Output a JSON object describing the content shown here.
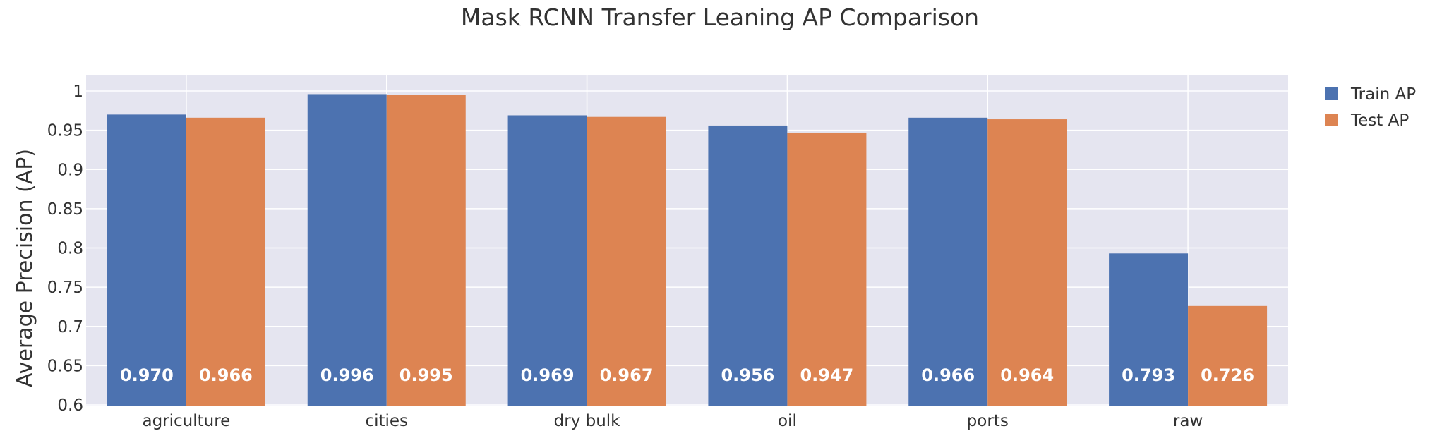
{
  "chart_data": {
    "type": "bar",
    "title": "Mask RCNN Transfer Leaning AP Comparison",
    "xlabel": "",
    "ylabel": "Average Precision (AP)",
    "categories": [
      "agriculture",
      "cities",
      "dry bulk",
      "oil",
      "ports",
      "raw"
    ],
    "series": [
      {
        "name": "Train AP",
        "color": "#4c72b0",
        "values": [
          0.97,
          0.996,
          0.969,
          0.956,
          0.966,
          0.793
        ],
        "labels": [
          "0.970",
          "0.996",
          "0.969",
          "0.956",
          "0.966",
          "0.793"
        ]
      },
      {
        "name": "Test AP",
        "color": "#dd8452",
        "values": [
          0.966,
          0.995,
          0.967,
          0.947,
          0.964,
          0.726
        ],
        "labels": [
          "0.966",
          "0.995",
          "0.967",
          "0.947",
          "0.964",
          "0.726"
        ]
      }
    ],
    "ylim": [
      0.6,
      1.0
    ],
    "yticks": [
      "0.6",
      "0.65",
      "0.7",
      "0.75",
      "0.8",
      "0.85",
      "0.9",
      "0.95",
      "1"
    ],
    "grid": true,
    "legend": "top-right",
    "plot_background": "#e5e5f0"
  }
}
